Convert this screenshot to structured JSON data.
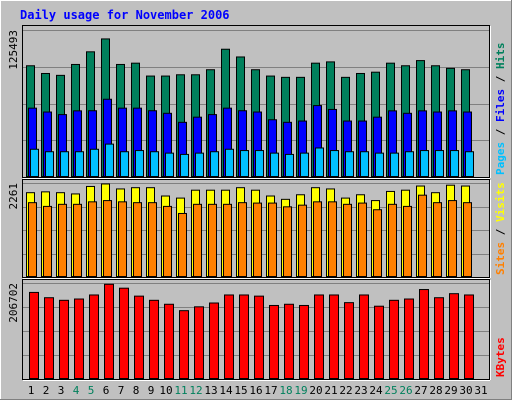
{
  "title": "Daily usage for November 2006",
  "colors": {
    "background": "#c0c0c0",
    "title_text": "#0000ff",
    "hits": "#00805c",
    "files": "#0000ff",
    "pages": "#00c0ff",
    "visits": "#ffff00",
    "sites": "#ff8000",
    "kbytes": "#ff0000",
    "weekday_label": "#000000",
    "weekend_label": "#00805c"
  },
  "chart_data": [
    {
      "type": "bar",
      "panel": "hits-files-pages",
      "y_max_label": "125493",
      "ylim": [
        0,
        125493
      ],
      "grid": true,
      "legend": [
        {
          "text": "Pages",
          "color": "#00c0ff"
        },
        {
          "text": "Files",
          "color": "#0000ff"
        },
        {
          "text": "Hits",
          "color": "#00805c"
        }
      ],
      "categories": [
        "1",
        "2",
        "3",
        "4",
        "5",
        "6",
        "7",
        "8",
        "9",
        "10",
        "11",
        "12",
        "13",
        "14",
        "15",
        "16",
        "17",
        "18",
        "19",
        "20",
        "21",
        "22",
        "23",
        "24",
        "25",
        "26",
        "27",
        "28",
        "29",
        "30",
        "31"
      ],
      "series": [
        {
          "name": "Hits",
          "values": [
            95400,
            88800,
            87200,
            96500,
            107300,
            118300,
            96500,
            97600,
            86600,
            86600,
            87700,
            87700,
            92000,
            109500,
            102900,
            92000,
            86600,
            85500,
            85500,
            97600,
            98700,
            85500,
            88800,
            89900,
            97600,
            95400,
            99800,
            95400,
            93200,
            92000,
            null
          ]
        },
        {
          "name": "Files",
          "values": [
            59200,
            55900,
            53700,
            56900,
            57000,
            66800,
            59200,
            59200,
            57000,
            54800,
            47100,
            51500,
            53700,
            59200,
            57000,
            55900,
            49300,
            47100,
            48200,
            61400,
            58100,
            48200,
            48200,
            51500,
            56900,
            54800,
            56900,
            55900,
            56900,
            55900,
            null
          ]
        },
        {
          "name": "Pages",
          "values": [
            24100,
            22000,
            22000,
            22000,
            24100,
            28500,
            22000,
            23000,
            22000,
            20800,
            19700,
            20800,
            22000,
            24100,
            23000,
            23000,
            20800,
            19700,
            20800,
            25200,
            23000,
            22000,
            22000,
            20800,
            20800,
            22000,
            23000,
            23000,
            23000,
            22000,
            null
          ]
        }
      ]
    },
    {
      "type": "bar",
      "panel": "visits-sites",
      "y_max_label": "2261",
      "ylim": [
        0,
        2261
      ],
      "grid": true,
      "legend": [
        {
          "text": "Sites",
          "color": "#ff8000"
        },
        {
          "text": "Visits",
          "color": "#ffff00"
        }
      ],
      "categories": [
        "1",
        "2",
        "3",
        "4",
        "5",
        "6",
        "7",
        "8",
        "9",
        "10",
        "11",
        "12",
        "13",
        "14",
        "15",
        "16",
        "17",
        "18",
        "19",
        "20",
        "21",
        "22",
        "23",
        "24",
        "25",
        "26",
        "27",
        "28",
        "29",
        "30",
        "31"
      ],
      "series": [
        {
          "name": "Visits",
          "values": [
            2040,
            2060,
            2040,
            2010,
            2190,
            2250,
            2130,
            2160,
            2160,
            1960,
            1910,
            2100,
            2100,
            2100,
            2160,
            2100,
            1960,
            1880,
            1990,
            2160,
            2130,
            1910,
            1990,
            1850,
            2070,
            2100,
            2200,
            2040,
            2220,
            2200,
            null
          ]
        },
        {
          "name": "Sites",
          "values": [
            1800,
            1710,
            1760,
            1760,
            1820,
            1850,
            1820,
            1800,
            1800,
            1710,
            1540,
            1760,
            1760,
            1760,
            1800,
            1790,
            1790,
            1700,
            1740,
            1820,
            1820,
            1760,
            1790,
            1630,
            1760,
            1710,
            1980,
            1800,
            1850,
            1800,
            null
          ]
        }
      ]
    },
    {
      "type": "bar",
      "panel": "kbytes",
      "y_max_label": "206702",
      "ylim": [
        0,
        206702
      ],
      "grid": true,
      "legend": [
        {
          "text": "KBytes",
          "color": "#ff0000"
        }
      ],
      "categories": [
        "1",
        "2",
        "3",
        "4",
        "5",
        "6",
        "7",
        "8",
        "9",
        "10",
        "11",
        "12",
        "13",
        "14",
        "15",
        "16",
        "17",
        "18",
        "19",
        "20",
        "21",
        "22",
        "23",
        "24",
        "25",
        "26",
        "27",
        "28",
        "29",
        "30",
        "31"
      ],
      "series": [
        {
          "name": "KBytes",
          "values": [
            187500,
            176100,
            170500,
            173300,
            182000,
            205000,
            196600,
            179500,
            170500,
            162000,
            148200,
            156500,
            164700,
            182000,
            182000,
            179500,
            159400,
            162000,
            159400,
            182000,
            182000,
            165500,
            182000,
            157800,
            170500,
            173300,
            193700,
            176100,
            184800,
            182000,
            null
          ]
        }
      ]
    }
  ],
  "x_day_labels": [
    {
      "text": "1",
      "weekend": false
    },
    {
      "text": "2",
      "weekend": false
    },
    {
      "text": "3",
      "weekend": false
    },
    {
      "text": "4",
      "weekend": true
    },
    {
      "text": "5",
      "weekend": true
    },
    {
      "text": "6",
      "weekend": false
    },
    {
      "text": "7",
      "weekend": false
    },
    {
      "text": "8",
      "weekend": false
    },
    {
      "text": "9",
      "weekend": false
    },
    {
      "text": "10",
      "weekend": false
    },
    {
      "text": "11",
      "weekend": true
    },
    {
      "text": "12",
      "weekend": true
    },
    {
      "text": "13",
      "weekend": false
    },
    {
      "text": "14",
      "weekend": false
    },
    {
      "text": "15",
      "weekend": false
    },
    {
      "text": "16",
      "weekend": false
    },
    {
      "text": "17",
      "weekend": false
    },
    {
      "text": "18",
      "weekend": true
    },
    {
      "text": "19",
      "weekend": true
    },
    {
      "text": "20",
      "weekend": false
    },
    {
      "text": "21",
      "weekend": false
    },
    {
      "text": "22",
      "weekend": false
    },
    {
      "text": "23",
      "weekend": false
    },
    {
      "text": "24",
      "weekend": false
    },
    {
      "text": "25",
      "weekend": true
    },
    {
      "text": "26",
      "weekend": true
    },
    {
      "text": "27",
      "weekend": false
    },
    {
      "text": "28",
      "weekend": false
    },
    {
      "text": "29",
      "weekend": false
    },
    {
      "text": "30",
      "weekend": false
    },
    {
      "text": "31",
      "weekend": false
    }
  ]
}
